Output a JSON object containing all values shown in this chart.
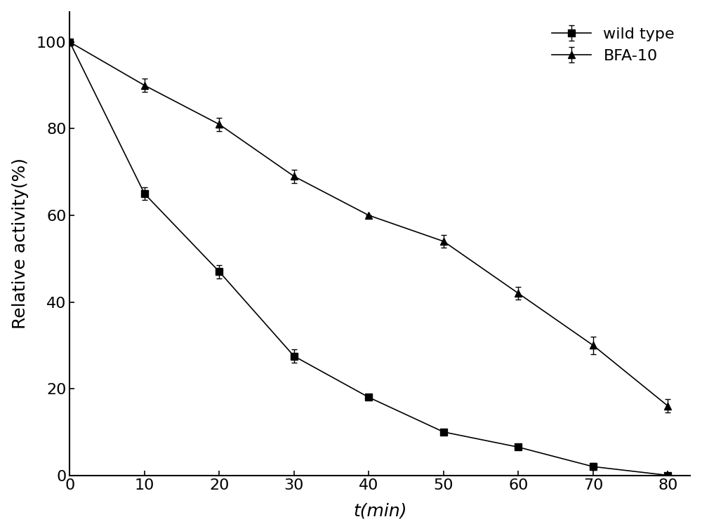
{
  "wild_type_x": [
    0,
    10,
    20,
    30,
    40,
    50,
    60,
    70,
    80
  ],
  "wild_type_y": [
    100,
    65,
    47,
    27.5,
    18,
    10,
    6.5,
    2,
    0
  ],
  "wild_type_err": [
    0,
    1.5,
    1.5,
    1.5,
    0,
    0,
    0,
    0.8,
    0
  ],
  "bfa10_x": [
    0,
    10,
    20,
    30,
    40,
    50,
    60,
    70,
    80
  ],
  "bfa10_y": [
    100,
    90,
    81,
    69,
    60,
    54,
    42,
    30,
    16
  ],
  "bfa10_err": [
    0,
    1.5,
    1.5,
    1.5,
    0,
    1.5,
    1.5,
    2.0,
    1.5
  ],
  "xlabel": "t(min)",
  "ylabel": "Relative activity(%)",
  "xlim": [
    0,
    83
  ],
  "ylim": [
    0,
    107
  ],
  "xticks": [
    0,
    10,
    20,
    30,
    40,
    50,
    60,
    70,
    80
  ],
  "yticks": [
    0,
    20,
    40,
    60,
    80,
    100
  ],
  "legend_labels": [
    "wild type",
    "BFA-10"
  ],
  "line_color": "#000000",
  "marker_wt": "s",
  "marker_bfa": "^",
  "markersize": 7,
  "linewidth": 1.2,
  "background_color": "#ffffff",
  "axis_fontsize": 18,
  "tick_fontsize": 16,
  "legend_fontsize": 16
}
